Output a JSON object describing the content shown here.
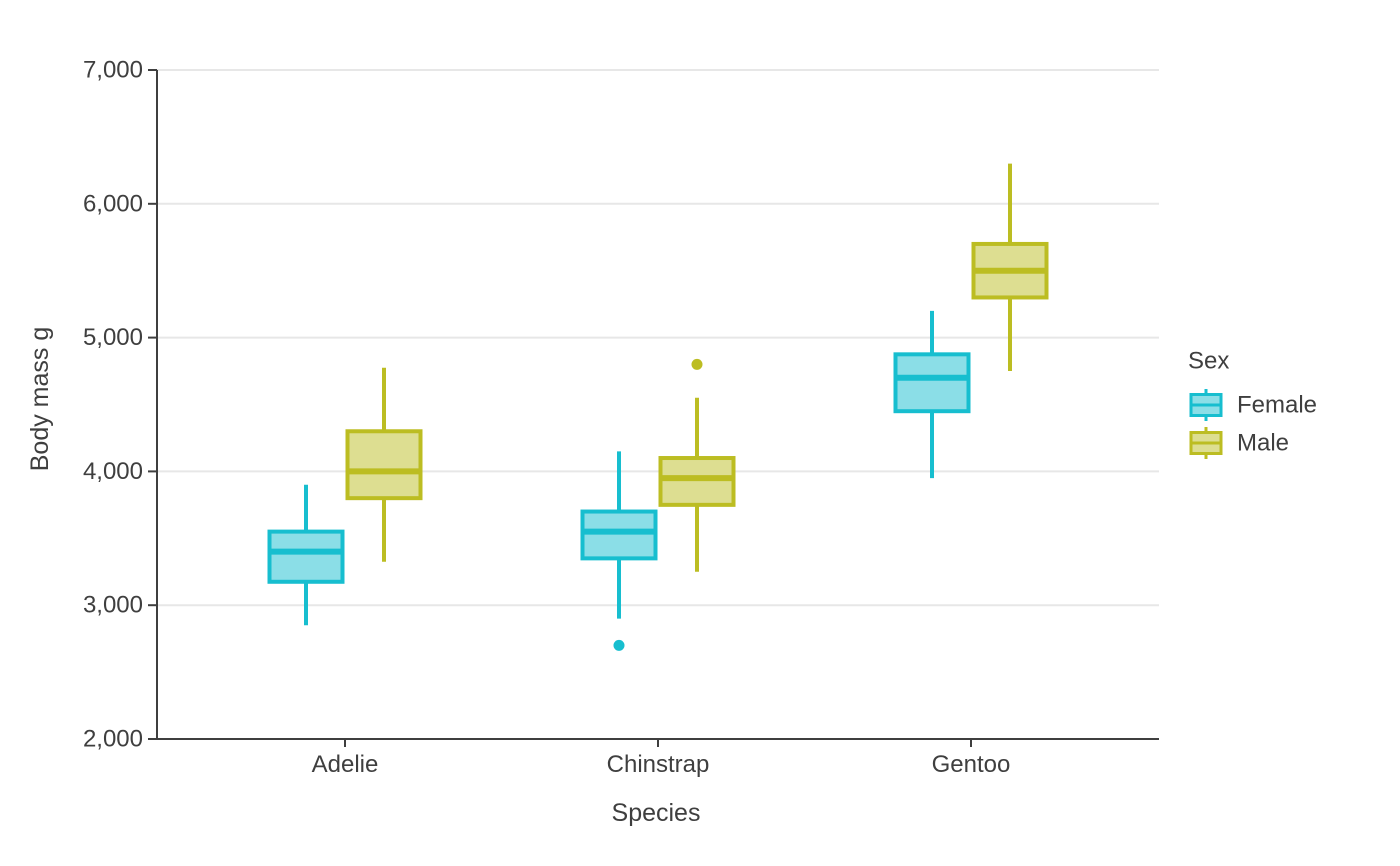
{
  "chart_data": {
    "type": "boxplot",
    "title": "",
    "xlabel": "Species",
    "ylabel": "Body mass g",
    "categories": [
      "Adelie",
      "Chinstrap",
      "Gentoo"
    ],
    "ylim": [
      2000,
      7000
    ],
    "y_ticks": [
      2000,
      3000,
      4000,
      5000,
      6000,
      7000
    ],
    "y_tick_labels": [
      "2,000",
      "3,000",
      "4,000",
      "5,000",
      "6,000",
      "7,000"
    ],
    "grid": "horizontal",
    "legend": {
      "title": "Sex",
      "position": "right",
      "entries": [
        {
          "label": "Female",
          "color": "#17becf",
          "fill": "#8bdee7"
        },
        {
          "label": "Male",
          "color": "#bcbd22",
          "fill": "#ddde91"
        }
      ]
    },
    "series": [
      {
        "name": "Female",
        "color": "#17becf",
        "fill": "#8bdee7",
        "boxes": [
          {
            "category": "Adelie",
            "whisker_low": 2850,
            "q1": 3175,
            "median": 3400,
            "q3": 3550,
            "whisker_high": 3900,
            "outliers": []
          },
          {
            "category": "Chinstrap",
            "whisker_low": 2900,
            "q1": 3350,
            "median": 3550,
            "q3": 3700,
            "whisker_high": 4150,
            "outliers": [
              2700
            ]
          },
          {
            "category": "Gentoo",
            "whisker_low": 3950,
            "q1": 4450,
            "median": 4700,
            "q3": 4875,
            "whisker_high": 5200,
            "outliers": []
          }
        ]
      },
      {
        "name": "Male",
        "color": "#bcbd22",
        "fill": "#ddde91",
        "boxes": [
          {
            "category": "Adelie",
            "whisker_low": 3325,
            "q1": 3800,
            "median": 4000,
            "q3": 4300,
            "whisker_high": 4775,
            "outliers": []
          },
          {
            "category": "Chinstrap",
            "whisker_low": 3250,
            "q1": 3750,
            "median": 3950,
            "q3": 4100,
            "whisker_high": 4550,
            "outliers": [
              4800
            ]
          },
          {
            "category": "Gentoo",
            "whisker_low": 4750,
            "q1": 5300,
            "median": 5500,
            "q3": 5700,
            "whisker_high": 6300,
            "outliers": []
          }
        ]
      }
    ]
  }
}
